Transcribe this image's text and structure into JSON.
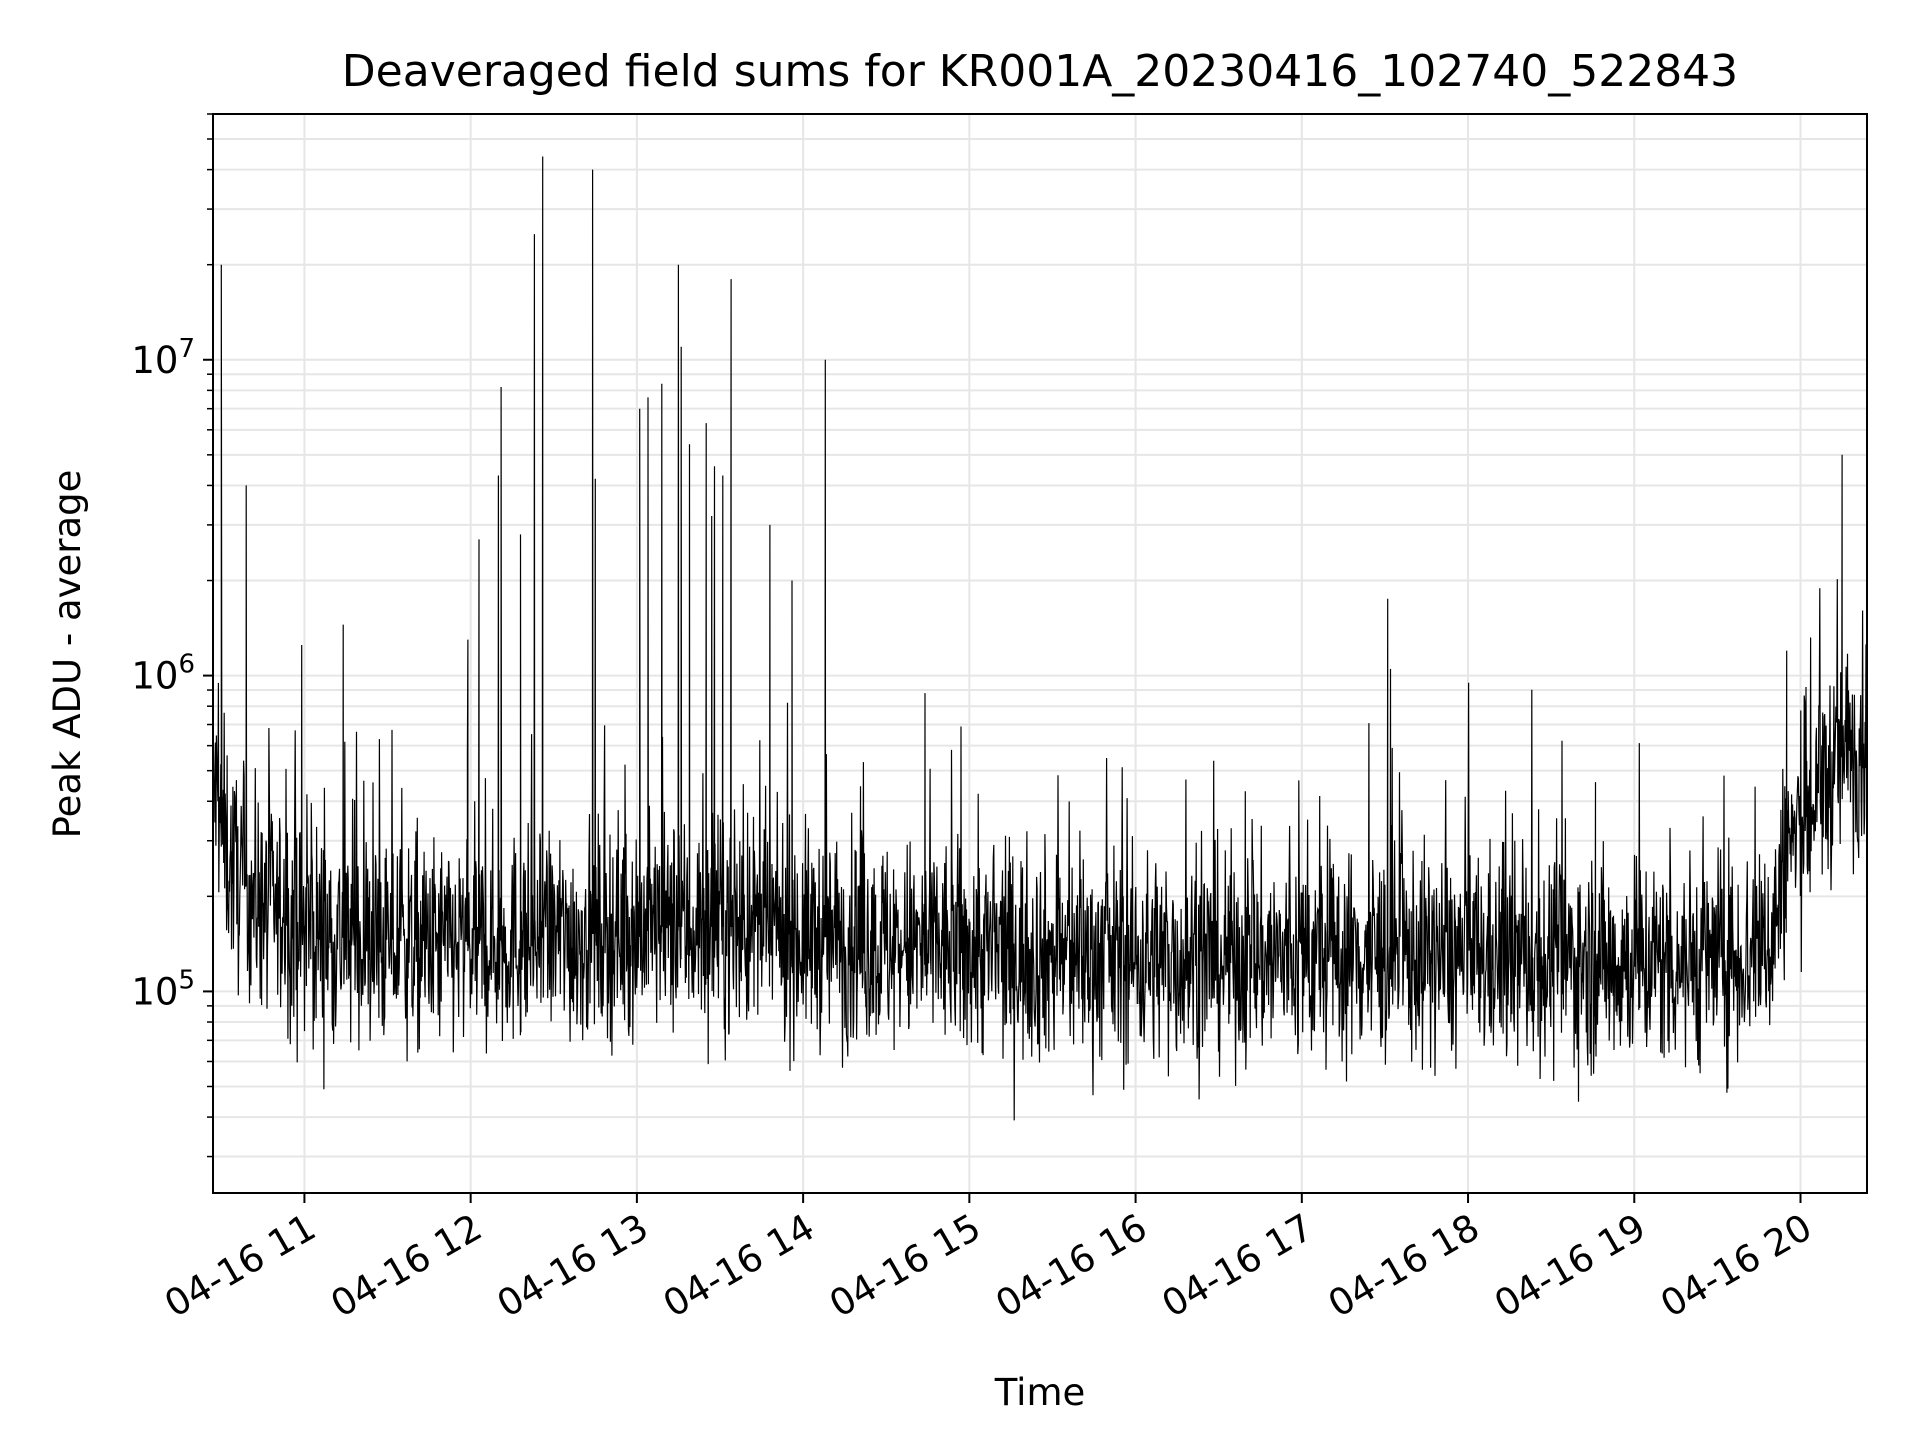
{
  "chart_data": {
    "type": "line",
    "title": "Deaveraged field sums for KR001A_20230416_102740_522843",
    "xlabel": "Time",
    "ylabel": "Peak ADU - average",
    "y_scale": "log",
    "ylim": [
      23000,
      60000000
    ],
    "xlim": [
      "2023-04-16 10:27",
      "2023-04-16 20:24"
    ],
    "x_tick_labels": [
      "04-16 11",
      "04-16 12",
      "04-16 13",
      "04-16 14",
      "04-16 15",
      "04-16 16",
      "04-16 17",
      "04-16 18",
      "04-16 19",
      "04-16 20"
    ],
    "x_tick_times": [
      "2023-04-16 11:00",
      "2023-04-16 12:00",
      "2023-04-16 13:00",
      "2023-04-16 14:00",
      "2023-04-16 15:00",
      "2023-04-16 16:00",
      "2023-04-16 17:00",
      "2023-04-16 18:00",
      "2023-04-16 19:00",
      "2023-04-16 20:00"
    ],
    "y_tick_labels": [
      {
        "base": "10",
        "exp": "5",
        "value": 100000
      },
      {
        "base": "10",
        "exp": "6",
        "value": 1000000
      },
      {
        "base": "10",
        "exp": "7",
        "value": 10000000
      }
    ],
    "grid": true,
    "line_color": "#000000",
    "grid_color": "#e6e6e6",
    "series": [
      {
        "x": [
          "2023-04-16 10:27",
          "2023-04-16 10:30",
          "2023-04-16 10:33",
          "2023-04-16 10:36",
          "2023-04-16 10:40",
          "2023-04-16 10:45",
          "2023-04-16 10:50",
          "2023-04-16 10:55",
          "2023-04-16 11:00",
          "2023-04-16 11:10",
          "2023-04-16 11:20",
          "2023-04-16 11:30",
          "2023-04-16 11:40",
          "2023-04-16 11:50",
          "2023-04-16 12:00",
          "2023-04-16 12:10",
          "2023-04-16 12:20",
          "2023-04-16 12:30",
          "2023-04-16 12:40",
          "2023-04-16 12:50",
          "2023-04-16 13:00",
          "2023-04-16 13:10",
          "2023-04-16 13:20",
          "2023-04-16 13:30",
          "2023-04-16 13:40",
          "2023-04-16 13:50",
          "2023-04-16 14:00",
          "2023-04-16 14:10",
          "2023-04-16 14:30",
          "2023-04-16 15:00",
          "2023-04-16 15:30",
          "2023-04-16 16:00",
          "2023-04-16 16:30",
          "2023-04-16 17:00",
          "2023-04-16 17:30",
          "2023-04-16 18:00",
          "2023-04-16 18:30",
          "2023-04-16 19:00",
          "2023-04-16 19:20",
          "2023-04-16 19:40",
          "2023-04-16 19:50",
          "2023-04-16 19:55",
          "2023-04-16 20:00",
          "2023-04-16 20:05",
          "2023-04-16 20:10",
          "2023-04-16 20:15",
          "2023-04-16 20:24"
        ],
        "values": [
          450000,
          350000,
          260000,
          230000,
          210000,
          190000,
          180000,
          165000,
          160000,
          150000,
          145000,
          140000,
          140000,
          140000,
          140000,
          145000,
          145000,
          150000,
          150000,
          155000,
          160000,
          160000,
          160000,
          160000,
          160000,
          155000,
          150000,
          148000,
          140000,
          135000,
          130000,
          128000,
          128000,
          128000,
          130000,
          128000,
          125000,
          125000,
          125000,
          130000,
          150000,
          280000,
          330000,
          400000,
          480000,
          560000,
          650000
        ]
      }
    ],
    "spikes": [
      {
        "x": "2023-04-16 10:30",
        "value": 20000000
      },
      {
        "x": "2023-04-16 10:39",
        "value": 4000000
      },
      {
        "x": "2023-04-16 10:59",
        "value": 1250000
      },
      {
        "x": "2023-04-16 11:14",
        "value": 1450000
      },
      {
        "x": "2023-04-16 11:59",
        "value": 1300000
      },
      {
        "x": "2023-04-16 12:03",
        "value": 2700000
      },
      {
        "x": "2023-04-16 12:10",
        "value": 4300000
      },
      {
        "x": "2023-04-16 12:11",
        "value": 8200000
      },
      {
        "x": "2023-04-16 12:18",
        "value": 2800000
      },
      {
        "x": "2023-04-16 12:23",
        "value": 25000000
      },
      {
        "x": "2023-04-16 12:26",
        "value": 44000000
      },
      {
        "x": "2023-04-16 12:44",
        "value": 40000000
      },
      {
        "x": "2023-04-16 12:45",
        "value": 4200000
      },
      {
        "x": "2023-04-16 13:01",
        "value": 7000000
      },
      {
        "x": "2023-04-16 13:04",
        "value": 7600000
      },
      {
        "x": "2023-04-16 13:09",
        "value": 8400000
      },
      {
        "x": "2023-04-16 13:15",
        "value": 20000000
      },
      {
        "x": "2023-04-16 13:16",
        "value": 11000000
      },
      {
        "x": "2023-04-16 13:19",
        "value": 5400000
      },
      {
        "x": "2023-04-16 13:25",
        "value": 6300000
      },
      {
        "x": "2023-04-16 13:27",
        "value": 3200000
      },
      {
        "x": "2023-04-16 13:28",
        "value": 4600000
      },
      {
        "x": "2023-04-16 13:31",
        "value": 4300000
      },
      {
        "x": "2023-04-16 13:34",
        "value": 18000000
      },
      {
        "x": "2023-04-16 13:48",
        "value": 3000000
      },
      {
        "x": "2023-04-16 13:56",
        "value": 2000000
      },
      {
        "x": "2023-04-16 14:08",
        "value": 10000000
      },
      {
        "x": "2023-04-16 14:44",
        "value": 880000
      },
      {
        "x": "2023-04-16 14:57",
        "value": 690000
      },
      {
        "x": "2023-04-16 17:31",
        "value": 1750000
      },
      {
        "x": "2023-04-16 17:32",
        "value": 1050000
      },
      {
        "x": "2023-04-16 18:46",
        "value": 460000
      },
      {
        "x": "2023-04-16 19:55",
        "value": 1200000
      },
      {
        "x": "2023-04-16 20:02",
        "value": 920000
      },
      {
        "x": "2023-04-16 20:15",
        "value": 5000000
      }
    ]
  }
}
